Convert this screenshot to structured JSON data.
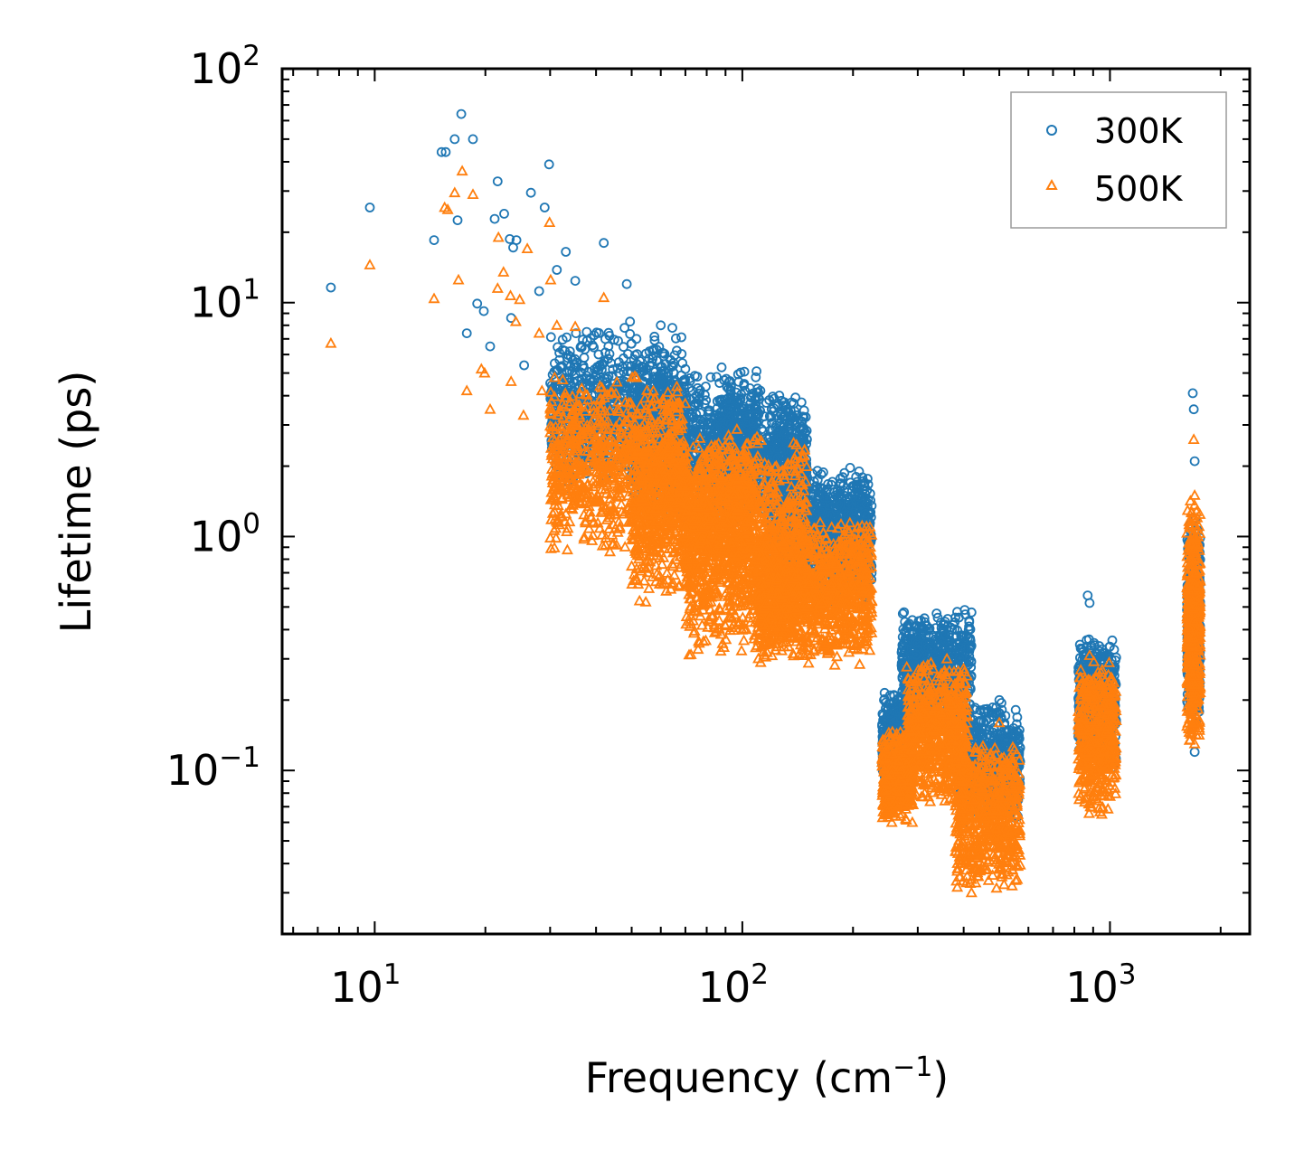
{
  "chart_data": {
    "type": "scatter",
    "xscale": "log",
    "yscale": "log",
    "xlim": [
      5.6,
      2400
    ],
    "ylim": [
      0.02,
      100
    ],
    "xlabel": "Frequency (cm",
    "xlabel_sup": "−1",
    "xlabel_end": ")",
    "ylabel": "Lifetime (ps)",
    "xticks": [
      {
        "value": 10,
        "base": "10",
        "exp": "1"
      },
      {
        "value": 100,
        "base": "10",
        "exp": "2"
      },
      {
        "value": 1000,
        "base": "10",
        "exp": "3"
      }
    ],
    "yticks": [
      {
        "value": 100,
        "base": "10",
        "exp": "2"
      },
      {
        "value": 10,
        "base": "10",
        "exp": "1"
      },
      {
        "value": 1,
        "base": "10",
        "exp": "0"
      },
      {
        "value": 0.1,
        "base": "10",
        "exp": "−1"
      }
    ],
    "legend_position": "top-right",
    "series": [
      {
        "name": "300K",
        "marker": "circle",
        "color": "#1f77b4",
        "points": [
          [
            7.6,
            11.6
          ],
          [
            9.7,
            25.5
          ],
          [
            14.5,
            18.5
          ],
          [
            15.2,
            44
          ],
          [
            15.6,
            44
          ],
          [
            16.5,
            50
          ],
          [
            16.8,
            22.5
          ],
          [
            17.2,
            64
          ],
          [
            17.8,
            7.4
          ],
          [
            18.5,
            50
          ],
          [
            19,
            9.9
          ],
          [
            19.8,
            9.2
          ],
          [
            20.6,
            6.5
          ],
          [
            21.2,
            22.8
          ],
          [
            21.6,
            33
          ],
          [
            22.5,
            24
          ],
          [
            23.3,
            18.7
          ],
          [
            23.5,
            8.6
          ],
          [
            23.8,
            17.2
          ],
          [
            24.3,
            18.5
          ],
          [
            25.5,
            5.4
          ],
          [
            26.6,
            29.5
          ],
          [
            28,
            11.2
          ],
          [
            29,
            25.5
          ],
          [
            29.8,
            39
          ],
          [
            31.3,
            13.8
          ],
          [
            33.1,
            16.5
          ],
          [
            35.1,
            12.4
          ],
          [
            42,
            18
          ],
          [
            48.5,
            12
          ],
          [
            49.5,
            8.3
          ],
          [
            60,
            8
          ],
          [
            64.5,
            7.8
          ],
          [
            70,
            5.2
          ],
          [
            82,
            4.8
          ],
          [
            100,
            2.5
          ],
          [
            112,
            4.2
          ],
          [
            130,
            3
          ],
          [
            150,
            1.8
          ],
          [
            160,
            1.6
          ],
          [
            180,
            1.3
          ],
          [
            200,
            0.95
          ],
          [
            215,
            0.55
          ],
          [
            260,
            0.13
          ],
          [
            300,
            0.35
          ],
          [
            340,
            0.45
          ],
          [
            390,
            0.3
          ],
          [
            400,
            0.06
          ],
          [
            450,
            0.15
          ],
          [
            500,
            0.2
          ],
          [
            550,
            0.12
          ],
          [
            870,
            0.56
          ],
          [
            880,
            0.52
          ],
          [
            900,
            0.3
          ],
          [
            950,
            0.22
          ],
          [
            1000,
            0.15
          ],
          [
            1680,
            4.1
          ],
          [
            1690,
            3.5
          ],
          [
            1700,
            2.1
          ],
          [
            1710,
            1.2
          ],
          [
            1720,
            0.5
          ],
          [
            1730,
            0.2
          ],
          [
            1700,
            0.12
          ]
        ],
        "clusters": [
          {
            "x": [
              30,
              70
            ],
            "y": [
              1.5,
              8
            ],
            "n": 900
          },
          {
            "x": [
              50,
              110
            ],
            "y": [
              1.1,
              5.5
            ],
            "n": 900
          },
          {
            "x": [
              85,
              150
            ],
            "y": [
              1.2,
              4.2
            ],
            "n": 800
          },
          {
            "x": [
              120,
              225
            ],
            "y": [
              0.5,
              2
            ],
            "n": 1200
          },
          {
            "x": [
              240,
              290
            ],
            "y": [
              0.08,
              0.22
            ],
            "n": 450
          },
          {
            "x": [
              270,
              420
            ],
            "y": [
              0.15,
              0.5
            ],
            "n": 700
          },
          {
            "x": [
              390,
              570
            ],
            "y": [
              0.06,
              0.2
            ],
            "n": 600
          },
          {
            "x": [
              820,
              1040
            ],
            "y": [
              0.1,
              0.38
            ],
            "n": 500
          },
          {
            "x": [
              1620,
              1760
            ],
            "y": [
              0.15,
              1.2
            ],
            "n": 500
          }
        ]
      },
      {
        "name": "500K",
        "marker": "triangle",
        "color": "#ff7f0e",
        "points": [
          [
            7.6,
            6.7
          ],
          [
            9.7,
            14.5
          ],
          [
            14.5,
            10.4
          ],
          [
            15.5,
            25.5
          ],
          [
            15.8,
            25
          ],
          [
            16.5,
            29.5
          ],
          [
            16.9,
            12.5
          ],
          [
            17.3,
            36.5
          ],
          [
            17.8,
            4.2
          ],
          [
            18.5,
            29
          ],
          [
            19.5,
            5.2
          ],
          [
            19.9,
            5
          ],
          [
            20.6,
            3.5
          ],
          [
            21.6,
            11.5
          ],
          [
            21.7,
            19
          ],
          [
            22.4,
            13.5
          ],
          [
            23.4,
            10.7
          ],
          [
            23.5,
            4.6
          ],
          [
            24.2,
            8.3
          ],
          [
            24.8,
            10.3
          ],
          [
            25.4,
            3.3
          ],
          [
            26,
            17
          ],
          [
            28,
            7.4
          ],
          [
            28.5,
            4.2
          ],
          [
            29.9,
            22
          ],
          [
            30.1,
            12.5
          ],
          [
            31.3,
            8
          ],
          [
            35.1,
            7.9
          ],
          [
            39,
            2.2
          ],
          [
            42,
            10.5
          ],
          [
            45,
            1.9
          ],
          [
            50,
            3.5
          ],
          [
            60,
            1.2
          ],
          [
            70,
            0.8
          ],
          [
            82,
            0.55
          ],
          [
            110,
            2.5
          ],
          [
            120,
            1.1
          ],
          [
            150,
            0.5
          ],
          [
            180,
            0.7
          ],
          [
            210,
            0.4
          ],
          [
            255,
            0.06
          ],
          [
            290,
            0.06
          ],
          [
            330,
            0.15
          ],
          [
            360,
            0.3
          ],
          [
            390,
            0.035
          ],
          [
            420,
            0.03
          ],
          [
            470,
            0.08
          ],
          [
            500,
            0.16
          ],
          [
            530,
            0.045
          ],
          [
            880,
            0.31
          ],
          [
            900,
            0.2
          ],
          [
            950,
            0.065
          ],
          [
            1000,
            0.12
          ],
          [
            1690,
            2.6
          ],
          [
            1700,
            1.5
          ],
          [
            1710,
            0.7
          ],
          [
            1720,
            0.3
          ],
          [
            1700,
            0.13
          ]
        ],
        "clusters": [
          {
            "x": [
              30,
              70
            ],
            "y": [
              0.8,
              5
            ],
            "n": 900
          },
          {
            "x": [
              50,
              110
            ],
            "y": [
              0.5,
              3
            ],
            "n": 900
          },
          {
            "x": [
              70,
              150
            ],
            "y": [
              0.3,
              2.8
            ],
            "n": 1000
          },
          {
            "x": [
              110,
              225
            ],
            "y": [
              0.28,
              1.2
            ],
            "n": 1200
          },
          {
            "x": [
              240,
              290
            ],
            "y": [
              0.06,
              0.15
            ],
            "n": 450
          },
          {
            "x": [
              280,
              410
            ],
            "y": [
              0.07,
              0.3
            ],
            "n": 700
          },
          {
            "x": [
              380,
              570
            ],
            "y": [
              0.03,
              0.14
            ],
            "n": 650
          },
          {
            "x": [
              820,
              1040
            ],
            "y": [
              0.065,
              0.3
            ],
            "n": 500
          },
          {
            "x": [
              1620,
              1760
            ],
            "y": [
              0.12,
              1.5
            ],
            "n": 500
          }
        ]
      }
    ]
  }
}
